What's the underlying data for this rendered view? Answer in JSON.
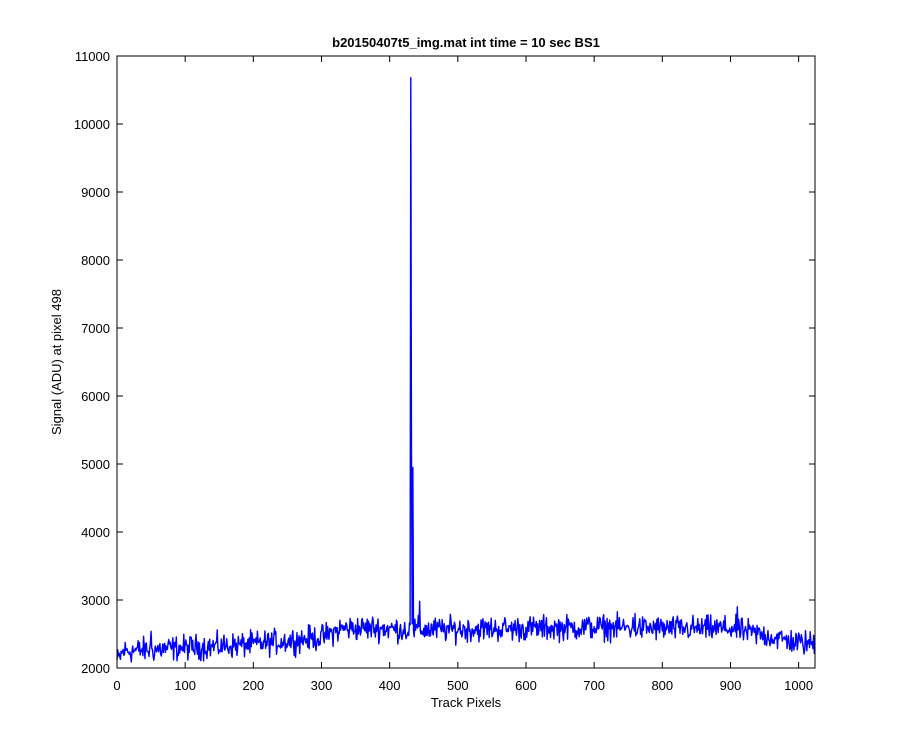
{
  "chart_data": {
    "type": "line",
    "title": "b20150407t5_img.mat int time = 10 sec   BS1",
    "xlabel": "Track Pixels",
    "ylabel": "Signal (ADU) at pixel 498",
    "xlim": [
      0,
      1024
    ],
    "ylim": [
      2000,
      11000
    ],
    "x_ticks": [
      0,
      100,
      200,
      300,
      400,
      500,
      600,
      700,
      800,
      900,
      1000
    ],
    "y_ticks": [
      2000,
      3000,
      4000,
      5000,
      6000,
      7000,
      8000,
      9000,
      10000,
      11000
    ],
    "grid": false,
    "line_color": "#0000ff",
    "baseline_profile": [
      {
        "x": 0,
        "y": 2100
      },
      {
        "x": 10,
        "y": 2250
      },
      {
        "x": 50,
        "y": 2270
      },
      {
        "x": 100,
        "y": 2300
      },
      {
        "x": 150,
        "y": 2320
      },
      {
        "x": 200,
        "y": 2350
      },
      {
        "x": 250,
        "y": 2400
      },
      {
        "x": 300,
        "y": 2450
      },
      {
        "x": 330,
        "y": 2580
      },
      {
        "x": 380,
        "y": 2590
      },
      {
        "x": 430,
        "y": 2560
      },
      {
        "x": 500,
        "y": 2570
      },
      {
        "x": 600,
        "y": 2580
      },
      {
        "x": 700,
        "y": 2600
      },
      {
        "x": 800,
        "y": 2580
      },
      {
        "x": 900,
        "y": 2580
      },
      {
        "x": 950,
        "y": 2480
      },
      {
        "x": 1000,
        "y": 2370
      },
      {
        "x": 1024,
        "y": 2360
      }
    ],
    "noise_amplitude": 90,
    "features": [
      {
        "x": 431,
        "y": 10680
      },
      {
        "x": 432,
        "y": 5200
      },
      {
        "x": 433,
        "y": 2650
      },
      {
        "x": 434,
        "y": 4950
      },
      {
        "x": 435,
        "y": 2550
      },
      {
        "x": 444,
        "y": 2980
      },
      {
        "x": 50,
        "y": 2540
      },
      {
        "x": 910,
        "y": 2900
      },
      {
        "x": 760,
        "y": 2800
      }
    ]
  }
}
